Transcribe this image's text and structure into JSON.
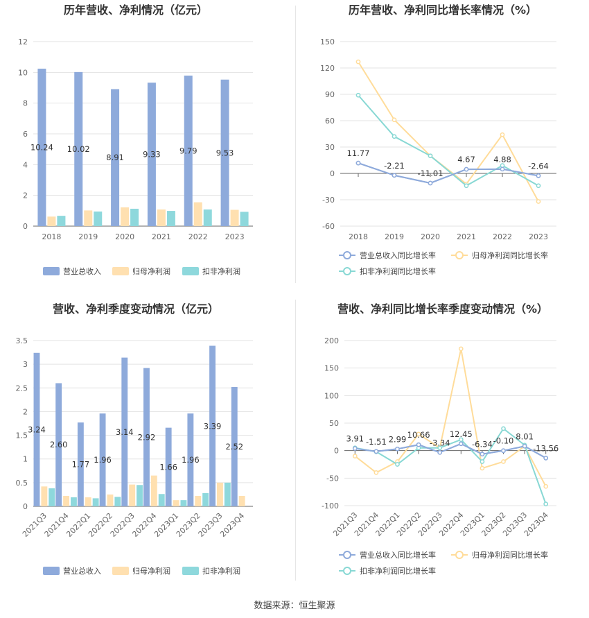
{
  "source": "数据来源：恒生聚源",
  "colors": {
    "revenue": "#8eaadb",
    "net_profit": "#ffe0b0",
    "deducted_profit": "#8ed8dc",
    "revenue_line": "#8eaadb",
    "net_line": "#ffdc9a",
    "deducted_line": "#88d8d4"
  },
  "chart_data": [
    {
      "id": "annual",
      "type": "bar",
      "title": "历年营收、净利情况（亿元）",
      "categories": [
        "2018",
        "2019",
        "2020",
        "2021",
        "2022",
        "2023"
      ],
      "ylim": [
        0,
        12
      ],
      "yticks": [
        0,
        2,
        4,
        6,
        8,
        10,
        12
      ],
      "grid": true,
      "legend_position": "bottom",
      "series": [
        {
          "name": "营业总收入",
          "values": [
            10.24,
            10.02,
            8.91,
            9.33,
            9.79,
            9.53
          ],
          "labels": [
            "10.24",
            "10.02",
            "8.91",
            "9.33",
            "9.79",
            "9.53"
          ]
        },
        {
          "name": "归母净利润",
          "values": [
            0.62,
            1.02,
            1.22,
            1.08,
            1.55,
            1.06
          ]
        },
        {
          "name": "扣非净利润",
          "values": [
            0.67,
            0.95,
            1.13,
            0.99,
            1.08,
            0.93
          ]
        }
      ]
    },
    {
      "id": "annual_growth",
      "type": "line",
      "title": "历年营收、净利同比增长率情况（%）",
      "categories": [
        "2018",
        "2019",
        "2020",
        "2021",
        "2022",
        "2023"
      ],
      "ylim": [
        -60,
        150
      ],
      "yticks": [
        -60,
        -30,
        0,
        30,
        60,
        90,
        120,
        150
      ],
      "grid": true,
      "legend_position": "bottom",
      "series": [
        {
          "name": "营业总收入同比增长率",
          "values": [
            11.77,
            -2.21,
            -11.01,
            4.67,
            4.88,
            -2.64
          ],
          "labels": [
            "11.77",
            "-2.21",
            "-11.01",
            "4.67",
            "4.88",
            "-2.64"
          ]
        },
        {
          "name": "归母净利润同比增长率",
          "values": [
            127,
            61,
            20,
            -12,
            44,
            -32
          ]
        },
        {
          "name": "扣非净利润同比增长率",
          "values": [
            89,
            42,
            20,
            -14,
            9,
            -14
          ]
        }
      ]
    },
    {
      "id": "quarterly",
      "type": "bar",
      "title": "营收、净利季度变动情况（亿元）",
      "categories": [
        "2021Q3",
        "2021Q4",
        "2022Q1",
        "2022Q2",
        "2022Q3",
        "2022Q4",
        "2023Q1",
        "2023Q2",
        "2023Q3",
        "2023Q4"
      ],
      "ylim": [
        0,
        3.5
      ],
      "yticks": [
        0,
        0.5,
        1,
        1.5,
        2,
        2.5,
        3,
        3.5
      ],
      "ytick_labels": [
        "0",
        "0.5",
        "1",
        "1.5",
        "2",
        "2.5",
        "3",
        "3.5"
      ],
      "grid": true,
      "legend_position": "bottom",
      "series": [
        {
          "name": "营业总收入",
          "values": [
            3.24,
            2.6,
            1.77,
            1.96,
            3.14,
            2.92,
            1.66,
            1.96,
            3.39,
            2.52
          ],
          "labels": [
            "3.24",
            "2.60",
            "1.77",
            "1.96",
            "3.14",
            "2.92",
            "1.66",
            "1.96",
            "3.39",
            "2.52"
          ]
        },
        {
          "name": "归母净利润",
          "values": [
            0.42,
            0.22,
            0.19,
            0.25,
            0.46,
            0.65,
            0.13,
            0.22,
            0.5,
            0.22
          ]
        },
        {
          "name": "扣非净利润",
          "values": [
            0.38,
            0.19,
            0.17,
            0.2,
            0.45,
            0.26,
            0.13,
            0.28,
            0.5,
            0.0
          ]
        }
      ]
    },
    {
      "id": "quarterly_growth",
      "type": "line",
      "title": "营收、净利同比增长率季度变动情况（%）",
      "categories": [
        "2021Q3",
        "2021Q4",
        "2022Q1",
        "2022Q2",
        "2022Q3",
        "2022Q4",
        "2023Q1",
        "2023Q2",
        "2023Q3",
        "2023Q4"
      ],
      "ylim": [
        -100,
        200
      ],
      "yticks": [
        -100,
        -50,
        0,
        50,
        100,
        150,
        200
      ],
      "grid": true,
      "legend_position": "bottom",
      "series": [
        {
          "name": "营业总收入同比增长率",
          "values": [
            3.91,
            -1.51,
            2.99,
            10.66,
            -3.34,
            12.45,
            -6.34,
            -0.1,
            8.01,
            -13.56
          ],
          "labels": [
            "3.91",
            "-1.51",
            "2.99",
            "10.66",
            "-3.34",
            "12.45",
            "-6.34",
            "-0.10",
            "8.01",
            "-13.56"
          ]
        },
        {
          "name": "归母净利润同比增长率",
          "values": [
            -10,
            -40,
            -20,
            30,
            5,
            185,
            -32,
            -20,
            8,
            -65
          ]
        },
        {
          "name": "扣非净利润同比增长率",
          "values": [
            5,
            -2,
            -25,
            5,
            5,
            20,
            -20,
            40,
            10,
            -97
          ]
        }
      ]
    }
  ]
}
